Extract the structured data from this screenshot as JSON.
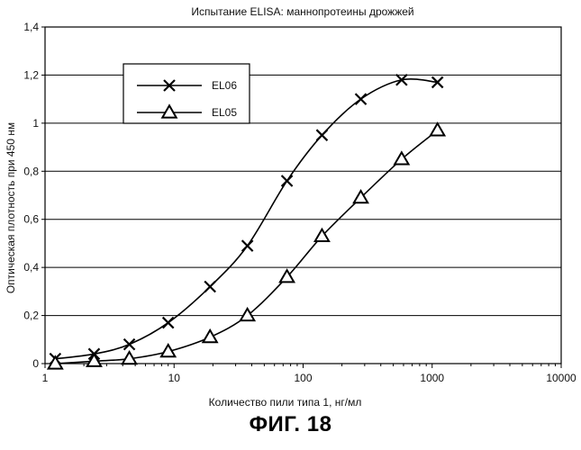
{
  "chart_data": {
    "type": "line",
    "title": "Испытание ELISA: маннопротеины дрожжей",
    "xlabel": "Количество пили типа 1, нг/мл",
    "ylabel": "Оптическая плотность при 450 нм",
    "xscale": "log",
    "xlim": [
      1,
      10000
    ],
    "ylim": [
      0,
      1.4
    ],
    "x_ticks": [
      "1",
      "10",
      "100",
      "1000",
      "10000"
    ],
    "y_ticks": [
      "0",
      "0,2",
      "0,4",
      "0,6",
      "0,8",
      "1",
      "1,2",
      "1,4"
    ],
    "grid": "horizontal",
    "legend_position": "top-left",
    "series": [
      {
        "name": "EL06",
        "marker": "x",
        "points": [
          [
            1.2,
            0.02
          ],
          [
            2.4,
            0.04
          ],
          [
            4.5,
            0.08
          ],
          [
            9,
            0.17
          ],
          [
            19,
            0.32
          ],
          [
            37,
            0.49
          ],
          [
            75,
            0.76
          ],
          [
            140,
            0.95
          ],
          [
            280,
            1.1
          ],
          [
            580,
            1.18
          ],
          [
            1100,
            1.17
          ]
        ]
      },
      {
        "name": "EL05",
        "marker": "triangle",
        "points": [
          [
            1.2,
            0.0
          ],
          [
            2.4,
            0.01
          ],
          [
            4.5,
            0.02
          ],
          [
            9,
            0.05
          ],
          [
            19,
            0.11
          ],
          [
            37,
            0.2
          ],
          [
            75,
            0.36
          ],
          [
            140,
            0.53
          ],
          [
            280,
            0.69
          ],
          [
            580,
            0.85
          ],
          [
            1100,
            0.97
          ]
        ]
      }
    ]
  },
  "figure": {
    "caption": "ФИГ. 18"
  }
}
